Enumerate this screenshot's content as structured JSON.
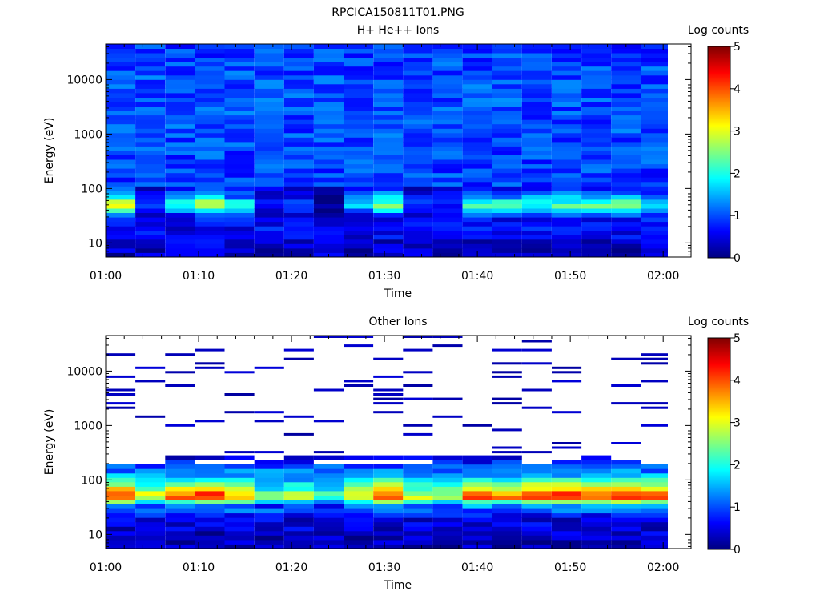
{
  "figure_title": "RPCICA150811T01.PNG",
  "chart_data": [
    {
      "type": "heatmap",
      "title": "H+ He++ Ions",
      "xlabel": "Time",
      "ylabel": "Energy (eV)",
      "x_ticks": [
        "01:00",
        "01:10",
        "01:20",
        "01:30",
        "01:40",
        "01:50",
        "02:00"
      ],
      "x_range_minutes": [
        0,
        63
      ],
      "y_scale": "log",
      "y_range": [
        5.5,
        45000
      ],
      "y_ticks": [
        10,
        100,
        1000,
        10000
      ],
      "y_tick_labels": [
        "10",
        "100",
        "1000",
        "10000"
      ],
      "colorbar": {
        "label": "Log counts",
        "range": [
          0,
          5
        ],
        "ticks": [
          "0",
          "1",
          "2",
          "3",
          "4",
          "5"
        ],
        "colormap": "jet"
      },
      "time_bins_minutes": [
        3.2,
        6.4,
        9.6,
        12.8,
        16.0,
        19.2,
        22.4,
        25.6,
        28.8,
        32.0,
        35.2,
        38.4,
        41.6,
        44.8,
        48.0,
        51.2,
        54.4,
        57.6,
        60.8,
        64.0
      ],
      "energy_profile": [
        {
          "energy_eV": 8,
          "log_counts": 0.35
        },
        {
          "energy_eV": 15,
          "log_counts": 0.55
        },
        {
          "energy_eV": 30,
          "log_counts": 0.7
        },
        {
          "energy_eV": 50,
          "log_counts": 2.7
        },
        {
          "energy_eV": 65,
          "log_counts": 1.8
        },
        {
          "energy_eV": 100,
          "log_counts": 0.9
        },
        {
          "energy_eV": 1000,
          "log_counts": 1.0
        },
        {
          "energy_eV": 10000,
          "log_counts": 1.0
        },
        {
          "energy_eV": 45000,
          "log_counts": 0.9
        }
      ],
      "bin_peak_log_counts": [
        3.2,
        1.1,
        2.2,
        3.0,
        2.0,
        1.0,
        0.9,
        0.2,
        1.8,
        2.6,
        1.0,
        0.9,
        2.4,
        2.2,
        2.3,
        2.3,
        2.6,
        2.5,
        2.2,
        2.6
      ]
    },
    {
      "type": "heatmap",
      "title": "Other Ions",
      "xlabel": "Time",
      "ylabel": "Energy (eV)",
      "x_ticks": [
        "01:00",
        "01:10",
        "01:20",
        "01:30",
        "01:40",
        "01:50",
        "02:00"
      ],
      "x_range_minutes": [
        0,
        63
      ],
      "y_scale": "log",
      "y_range": [
        5.5,
        45000
      ],
      "y_ticks": [
        10,
        100,
        1000,
        10000
      ],
      "y_tick_labels": [
        "10",
        "100",
        "1000",
        "10000"
      ],
      "colorbar": {
        "label": "Log counts",
        "range": [
          0,
          5
        ],
        "ticks": [
          "0",
          "1",
          "2",
          "3",
          "4",
          "5"
        ],
        "colormap": "jet"
      },
      "time_bins_minutes": [
        3.2,
        6.4,
        9.6,
        12.8,
        16.0,
        19.2,
        22.4,
        25.6,
        28.8,
        32.0,
        35.2,
        38.4,
        41.6,
        44.8,
        48.0,
        51.2,
        54.4,
        57.6,
        60.8,
        64.0
      ],
      "energy_profile": [
        {
          "energy_eV": 8,
          "log_counts": 0.3
        },
        {
          "energy_eV": 20,
          "log_counts": 0.5
        },
        {
          "energy_eV": 35,
          "log_counts": 1.5
        },
        {
          "energy_eV": 50,
          "log_counts": 4.3
        },
        {
          "energy_eV": 70,
          "log_counts": 3.2
        },
        {
          "energy_eV": 120,
          "log_counts": 1.5
        },
        {
          "energy_eV": 250,
          "log_counts": 0.5
        },
        {
          "energy_eV": 45000,
          "log_counts": 0.05
        }
      ],
      "bin_peak_log_counts": [
        4.5,
        3.2,
        4.3,
        4.4,
        3.8,
        2.6,
        3.0,
        2.4,
        3.5,
        4.2,
        3.1,
        2.9,
        4.3,
        4.1,
        4.4,
        4.6,
        4.5,
        4.4,
        4.2,
        4.4
      ]
    }
  ]
}
